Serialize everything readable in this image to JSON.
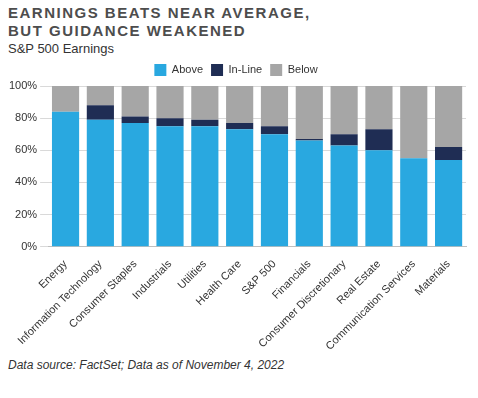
{
  "chart_data": {
    "type": "bar",
    "title": "EARNINGS BEATS NEAR AVERAGE, BUT GUIDANCE WEAKENED",
    "subtitle": "S&P 500 Earnings",
    "annotations": [
      "Data source: FactSet; Data as of November 4, 2022"
    ],
    "categories": [
      "Energy",
      "Information Technology",
      "Consumer Staples",
      "Industrials",
      "Utilities",
      "Health Care",
      "S&P 500",
      "Financials",
      "Consumer Discretionary",
      "Real Estate",
      "Communication Services",
      "Materials"
    ],
    "series": [
      {
        "name": "Above",
        "color": "#29a8e0",
        "values": [
          84,
          79,
          77,
          75,
          75,
          73,
          70,
          66,
          63,
          60,
          55,
          54
        ]
      },
      {
        "name": "In-Line",
        "color": "#1f2d54",
        "values": [
          0,
          9,
          4,
          5,
          4,
          4,
          5,
          1,
          7,
          13,
          0,
          8
        ]
      },
      {
        "name": "Below",
        "color": "#a6a6a6",
        "values": [
          16,
          12,
          19,
          20,
          21,
          23,
          25,
          33,
          30,
          27,
          45,
          38
        ]
      }
    ],
    "stacked": true,
    "ylim": [
      0,
      100
    ],
    "yticks": [
      {
        "value": 0,
        "label": "0%"
      },
      {
        "value": 20,
        "label": "20%"
      },
      {
        "value": 40,
        "label": "40%"
      },
      {
        "value": 60,
        "label": "60%"
      },
      {
        "value": 80,
        "label": "80%"
      },
      {
        "value": 100,
        "label": "100%"
      }
    ],
    "grid": true,
    "legend": "top"
  }
}
